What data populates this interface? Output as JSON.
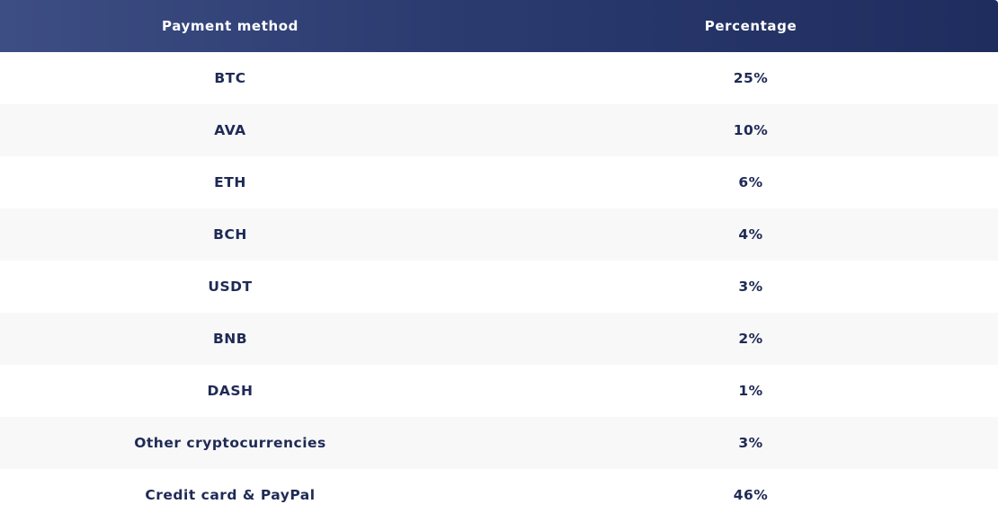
{
  "chart_data": {
    "type": "table",
    "columns": [
      "Payment method",
      "Percentage"
    ],
    "rows": [
      {
        "method": "BTC",
        "percentage": "25%",
        "value": 25
      },
      {
        "method": "AVA",
        "percentage": "10%",
        "value": 10
      },
      {
        "method": "ETH",
        "percentage": "6%",
        "value": 6
      },
      {
        "method": "BCH",
        "percentage": "4%",
        "value": 4
      },
      {
        "method": "USDT",
        "percentage": "3%",
        "value": 3
      },
      {
        "method": "BNB",
        "percentage": "2%",
        "value": 2
      },
      {
        "method": "DASH",
        "percentage": "1%",
        "value": 1
      },
      {
        "method": "Other cryptocurrencies",
        "percentage": "3%",
        "value": 3
      },
      {
        "method": "Credit card & PayPal",
        "percentage": "46%",
        "value": 46
      }
    ]
  },
  "colors": {
    "header_start": "#3d4e84",
    "header_end": "#1f2c5e",
    "text": "#1f2a55",
    "row_alt": "#f8f8f8"
  }
}
